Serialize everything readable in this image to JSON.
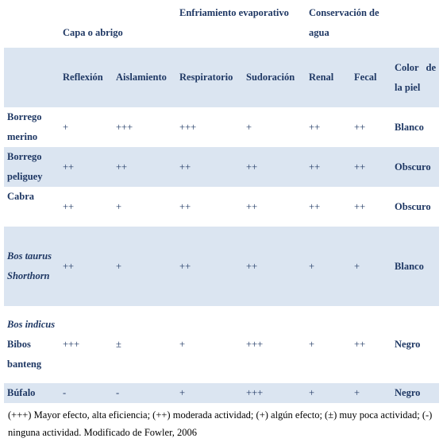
{
  "header": {
    "groups": [
      "Capa o abrigo",
      "Enfriamiento evaporativo",
      "Conservación de agua"
    ],
    "columns": [
      "Reflexión",
      "Aislamiento",
      "Respiratorio",
      "Sudoración",
      "Renal",
      "Fecal",
      "Color de la piel"
    ]
  },
  "rows": [
    {
      "animal": "Borrego merino",
      "italic": false,
      "values": [
        "+",
        "+++",
        "+++",
        "+",
        "++",
        "++"
      ],
      "skin": "Blanco"
    },
    {
      "animal": "Borrego peliguey",
      "italic": false,
      "values": [
        "++",
        "++",
        "++",
        "++",
        "++",
        "++"
      ],
      "skin": "Obscuro"
    },
    {
      "animal": "Cabra",
      "italic": false,
      "values": [
        "++",
        "+",
        "++",
        "++",
        "++",
        "++"
      ],
      "skin": "Obscuro"
    },
    {
      "animal": "Bos taurus Shorthorn",
      "italic": true,
      "values": [
        "++",
        "+",
        "++",
        "++",
        "+",
        "+"
      ],
      "skin": "Blanco"
    },
    {
      "animal_italic": "Bos indicus",
      "animal_rest": "Bibos banteng",
      "values": [
        "+++",
        "±",
        "+",
        "+++",
        "+",
        "++"
      ],
      "skin": "Negro"
    },
    {
      "animal": "Búfalo",
      "italic": false,
      "values": [
        "-",
        "-",
        "+",
        "+++",
        "+",
        "+"
      ],
      "skin": "Negro"
    }
  ],
  "footer": "(+++) Mayor efecto, alta eficiencia; (++) moderada actividad; (+) algún efecto; (±) muy poca actividad; (-) ninguna actividad. Modificado de Fowler, 2006"
}
